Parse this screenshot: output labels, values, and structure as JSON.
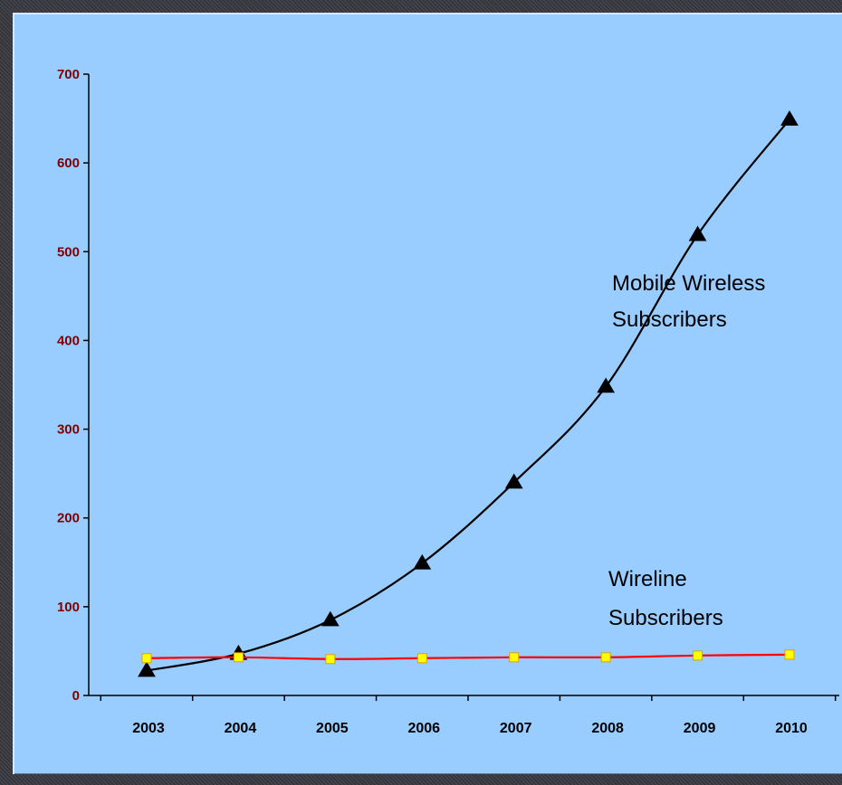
{
  "chart_data": {
    "type": "line",
    "title": "",
    "xlabel": "",
    "ylabel": "",
    "categories": [
      "2003",
      "2004",
      "2005",
      "2006",
      "2007",
      "2008",
      "2009",
      "2010"
    ],
    "ylim": [
      0,
      700
    ],
    "yticks": [
      0,
      100,
      200,
      300,
      400,
      500,
      600,
      700
    ],
    "grid": false,
    "series": [
      {
        "key": "mobile",
        "values": [
          28,
          47,
          85,
          149,
          240,
          348,
          519,
          649
        ],
        "color": "#000000",
        "marker": "triangle",
        "marker_color": "#000000"
      },
      {
        "key": "wireline",
        "values": [
          42,
          43,
          41,
          42,
          43,
          43,
          45,
          46
        ],
        "color": "#ff0000",
        "marker": "square",
        "marker_color": "#ffff00"
      }
    ],
    "annotations": {
      "mobile": [
        "Mobile Wireless",
        "Subscribers"
      ],
      "wireline": [
        "Wireline",
        "Subscribers"
      ]
    }
  },
  "colors": {
    "panel_background": "#99ccff",
    "y_tick_label": "#800000",
    "x_tick_label": "#000000"
  }
}
